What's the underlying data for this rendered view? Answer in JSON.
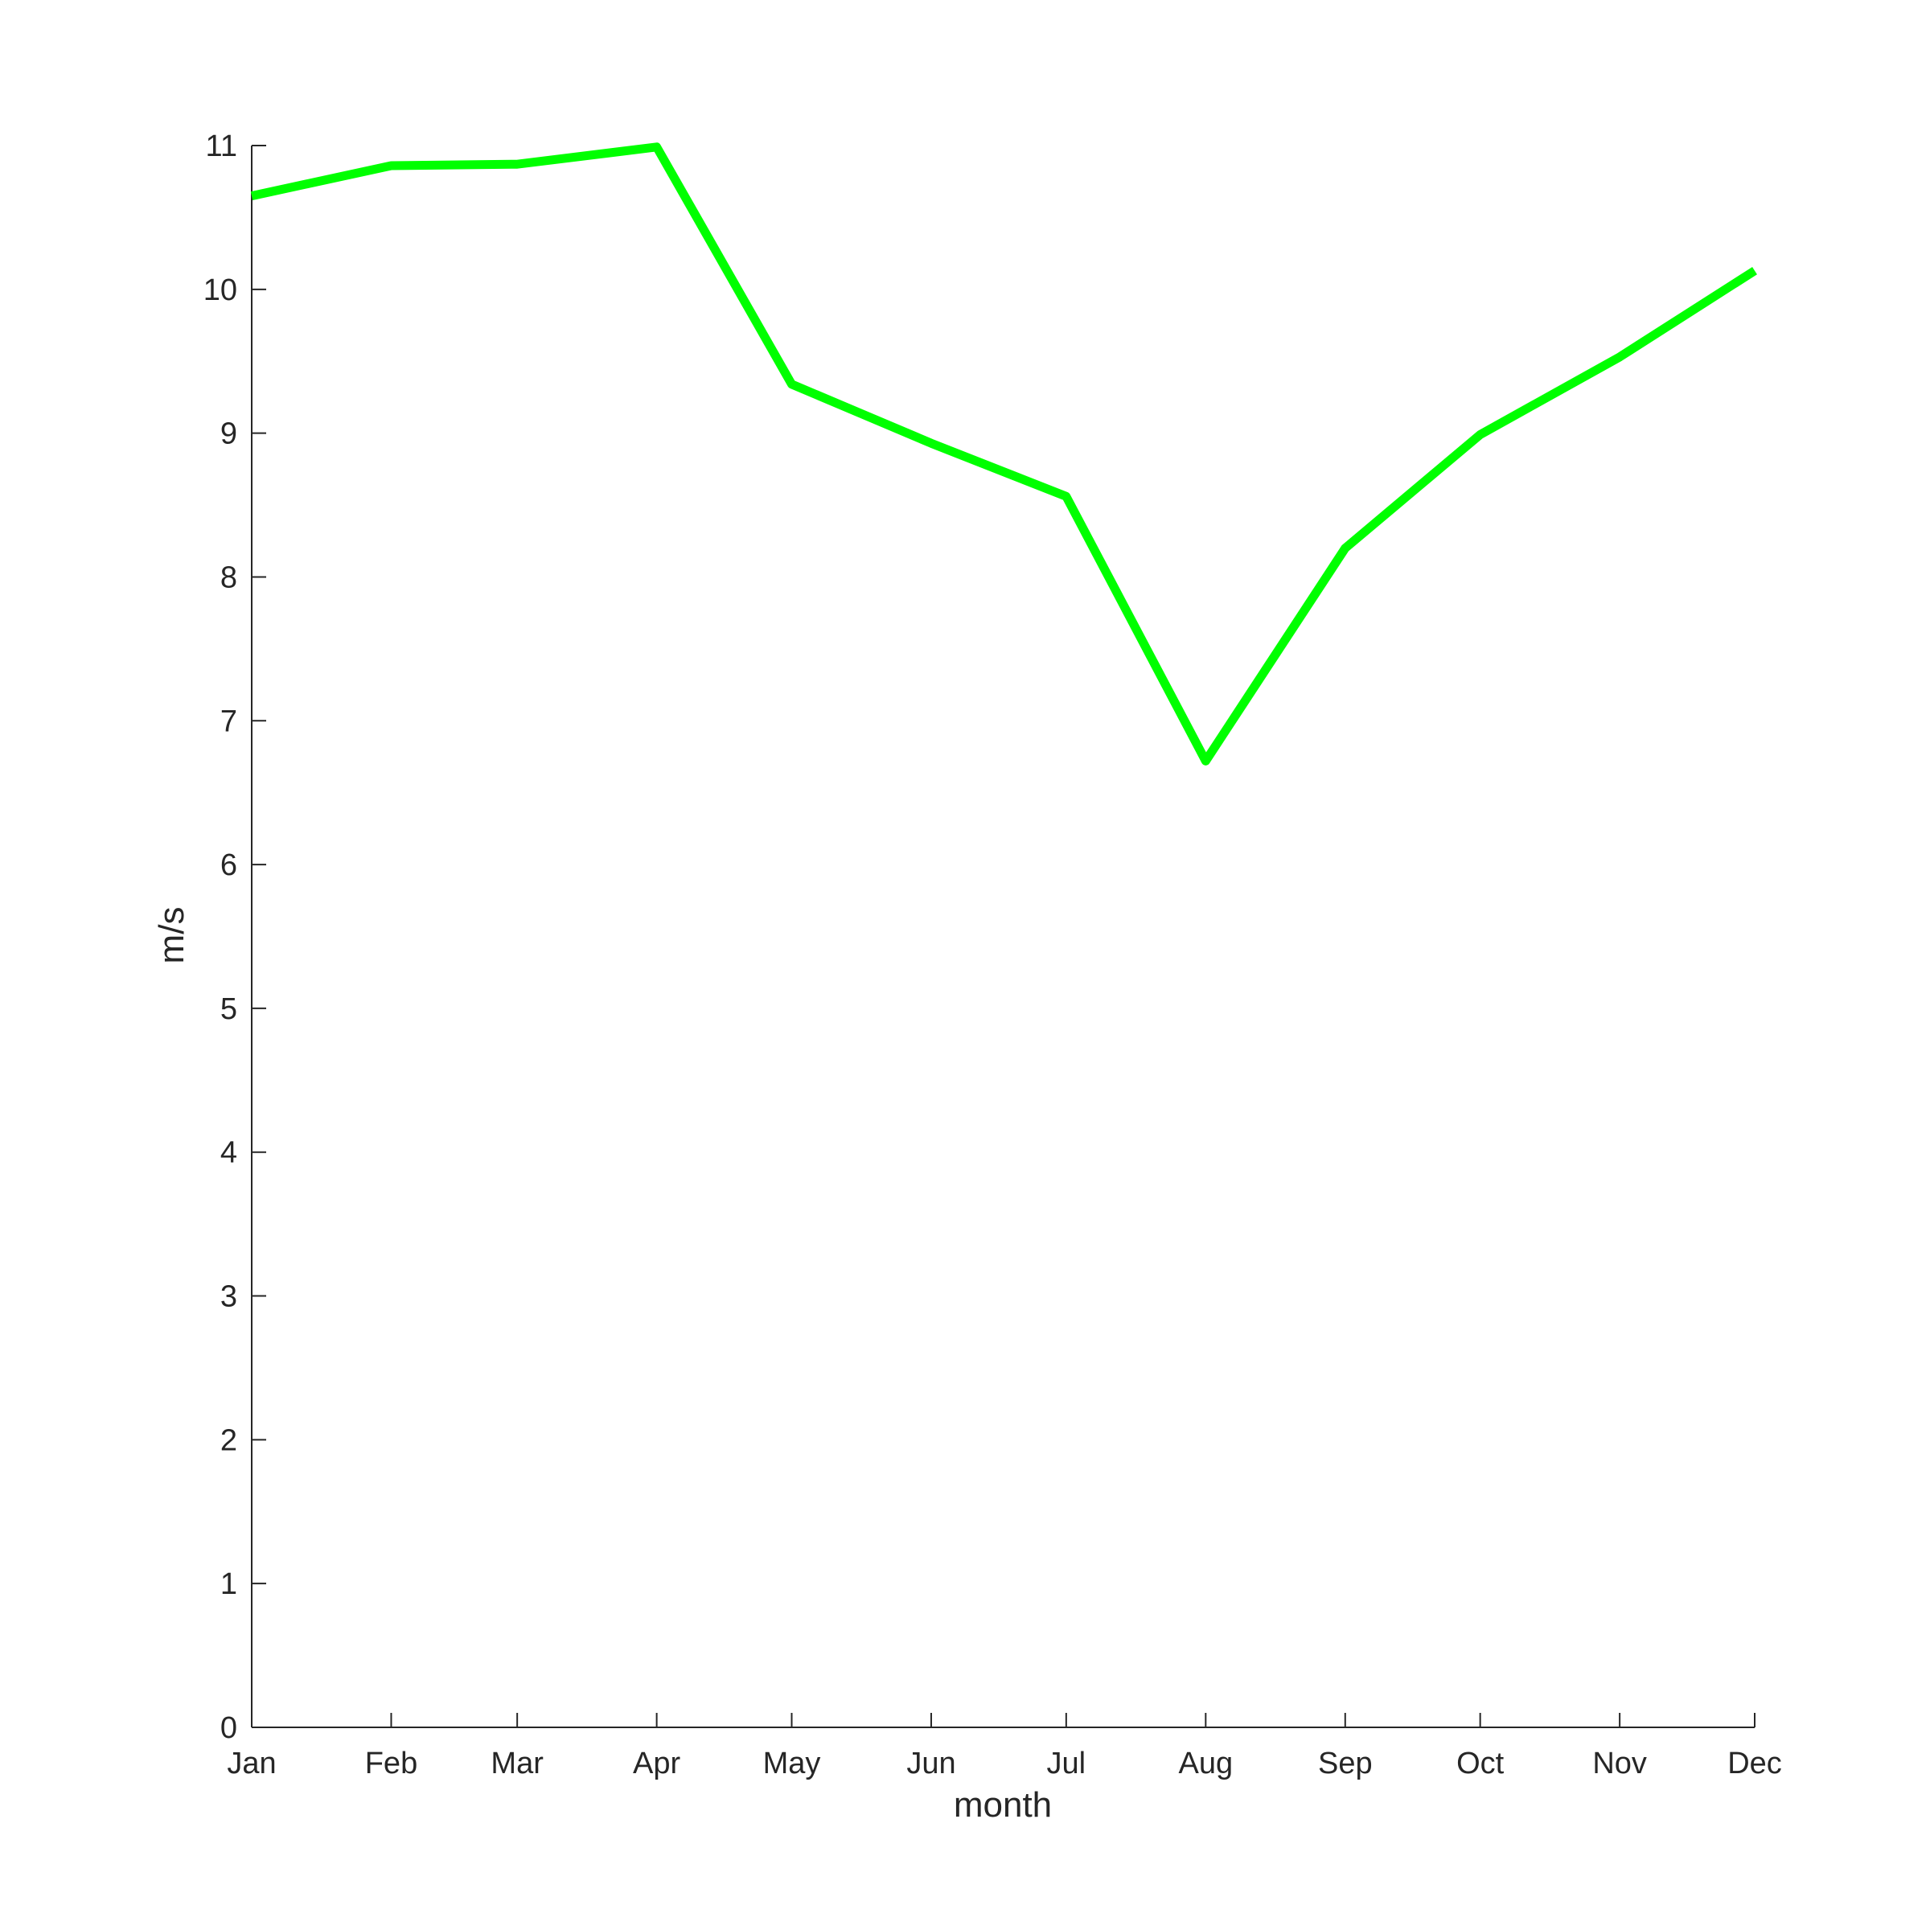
{
  "chart_data": {
    "type": "line",
    "xlabel": "month",
    "ylabel": "m/s",
    "categories": [
      "Jan",
      "Feb",
      "Mar",
      "Apr",
      "May",
      "Jun",
      "Jul",
      "Aug",
      "Sep",
      "Oct",
      "Nov",
      "Dec"
    ],
    "x_dates": [
      "1-Jan",
      "1-Feb",
      "1-Mar",
      "1-Apr",
      "1-May",
      "1-Jun",
      "1-Jul",
      "1-Aug",
      "1-Sep",
      "1-Oct",
      "1-Nov",
      "1-Dec"
    ],
    "series": [
      {
        "values": [
          10.65,
          10.86,
          10.87,
          10.99,
          9.34,
          8.93,
          8.56,
          6.72,
          8.2,
          8.99,
          9.53,
          10.13
        ],
        "color": "#00ff00"
      }
    ],
    "ylim": [
      0,
      11
    ],
    "yticks": [
      0,
      1,
      2,
      3,
      4,
      5,
      6,
      7,
      8,
      9,
      10,
      11
    ],
    "grid": false
  }
}
